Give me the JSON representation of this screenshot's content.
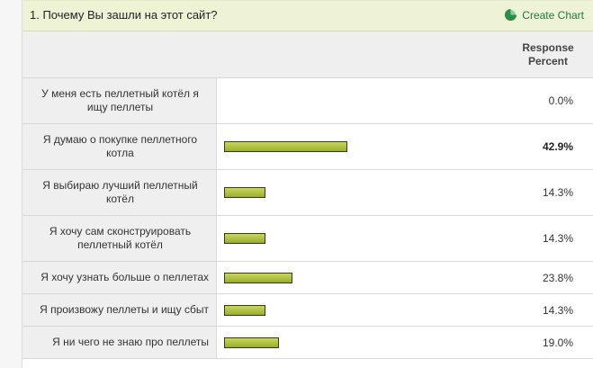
{
  "question": {
    "title": "1. Почему Вы зашли на этот сайт?",
    "create_chart_label": "Create Chart"
  },
  "header": {
    "response_percent_line1": "Response",
    "response_percent_line2": "Percent"
  },
  "rows": [
    {
      "label": "У меня есть пеллетный котёл я ищу пеллеты",
      "percent": "0.0%",
      "value": 0.0,
      "bold": false
    },
    {
      "label": "Я думаю о покупке пеллетного котла",
      "percent": "42.9%",
      "value": 42.9,
      "bold": true
    },
    {
      "label": "Я выбираю лучший пеллетный котёл",
      "percent": "14.3%",
      "value": 14.3,
      "bold": false
    },
    {
      "label": "Я хочу сам сконструировать пеллетный котёл",
      "percent": "14.3%",
      "value": 14.3,
      "bold": false
    },
    {
      "label": "Я хочу узнать больше о пеллетах",
      "percent": "23.8%",
      "value": 23.8,
      "bold": false
    },
    {
      "label": "Я произвожу пеллеты и ищу сбыт",
      "percent": "14.3%",
      "value": 14.3,
      "bold": false
    },
    {
      "label": "Я ни чего не знаю про пеллеты",
      "percent": "19.0%",
      "value": 19.0,
      "bold": false
    }
  ],
  "colors": {
    "question_bar_bg": "#eef3d6",
    "bar_fill": "#9aae2e",
    "link_green": "#1f7a3a",
    "label_bg": "#efefef"
  },
  "icons": {
    "create_chart": "pie-chart-icon"
  }
}
